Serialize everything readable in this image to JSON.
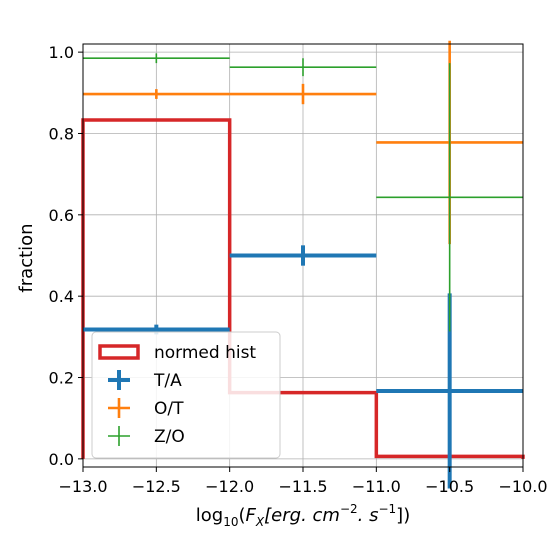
{
  "chart_data": {
    "type": "step-histogram-errorbar",
    "xlabel": {
      "prefix": "log",
      "sub": "10",
      "open": "(",
      "var": "F",
      "var_sub": "X",
      "bracket": "[erg. cm",
      "exp1": "−2",
      "mid": ". s",
      "exp2": "−1",
      "close": "])"
    },
    "ylabel": "fraction",
    "xlim": [
      -13.0,
      -10.0
    ],
    "ylim": [
      -0.02,
      1.02
    ],
    "xticks": [
      -13.0,
      -12.5,
      -12.0,
      -11.5,
      -11.0,
      -10.5,
      -10.0
    ],
    "xtick_labels": [
      "−13.0",
      "−12.5",
      "−12.0",
      "−11.5",
      "−11.0",
      "−10.5",
      "−10.0"
    ],
    "yticks": [
      0.0,
      0.2,
      0.4,
      0.6,
      0.8,
      1.0
    ],
    "ytick_labels": [
      "0.0",
      "0.2",
      "0.4",
      "0.6",
      "0.8",
      "1.0"
    ],
    "grid": true,
    "legend_position": "lower left",
    "histogram": {
      "name": "normed hist",
      "color": "#d62728",
      "bin_edges": [
        -13.0,
        -12.0,
        -11.0,
        -10.0
      ],
      "values": [
        0.833,
        0.163,
        0.006
      ]
    },
    "series": [
      {
        "name": "T/A",
        "color": "#1f77b4",
        "weight": "thick",
        "points": [
          {
            "x": -12.5,
            "y": 0.318,
            "xerr": 0.5,
            "yerr": 0.012
          },
          {
            "x": -11.5,
            "y": 0.5,
            "xerr": 0.5,
            "yerr": 0.025
          },
          {
            "x": -10.5,
            "y": 0.167,
            "xerr": 0.5,
            "yerr": 0.24
          }
        ]
      },
      {
        "name": "O/T",
        "color": "#ff7f0e",
        "weight": "medium",
        "points": [
          {
            "x": -12.5,
            "y": 0.897,
            "xerr": 0.5,
            "yerr": 0.012
          },
          {
            "x": -11.5,
            "y": 0.897,
            "xerr": 0.5,
            "yerr": 0.025
          },
          {
            "x": -10.5,
            "y": 0.778,
            "xerr": 0.5,
            "yerr": 0.25
          }
        ]
      },
      {
        "name": "Z/O",
        "color": "#2ca02c",
        "weight": "thin",
        "points": [
          {
            "x": -12.5,
            "y": 0.985,
            "xerr": 0.5,
            "yerr": 0.012
          },
          {
            "x": -11.5,
            "y": 0.963,
            "xerr": 0.5,
            "yerr": 0.022
          },
          {
            "x": -10.5,
            "y": 0.643,
            "xerr": 0.5,
            "yerr": 0.33
          }
        ]
      }
    ]
  }
}
